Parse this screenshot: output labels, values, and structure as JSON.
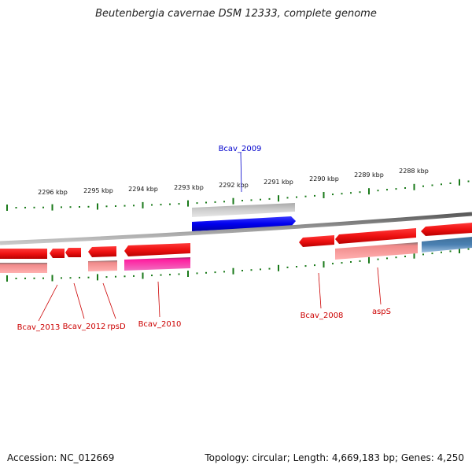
{
  "title": "Beutenbergia cavernae DSM 12333, complete genome",
  "footer": {
    "accession": "Accession: NC_012669",
    "summary": "Topology: circular; Length: 4,669,183 bp; Genes: 4,250"
  },
  "colors": {
    "forward_gene": "#0000ee",
    "forward_cds": "#bdbdbd",
    "reverse_gene": "#ee1111",
    "reverse_cds": "#ee8888",
    "rrna": "#e6199a",
    "other": "#4a7fb0",
    "tick": "#1a7a1a",
    "backbone": "#808080"
  },
  "scale": {
    "ticks_kbp": [
      "2296 kbp",
      "2295 kbp",
      "2294 kbp",
      "2293 kbp",
      "2292 kbp",
      "2291 kbp",
      "2290 kbp",
      "2289 kbp",
      "2288 kbp"
    ]
  },
  "gene_labels": {
    "top": [
      "Bcav_2009"
    ],
    "bottom": [
      "Bcav_2013",
      "Bcav_2012",
      "rpsD",
      "Bcav_2010",
      "Bcav_2008",
      "aspS"
    ]
  }
}
